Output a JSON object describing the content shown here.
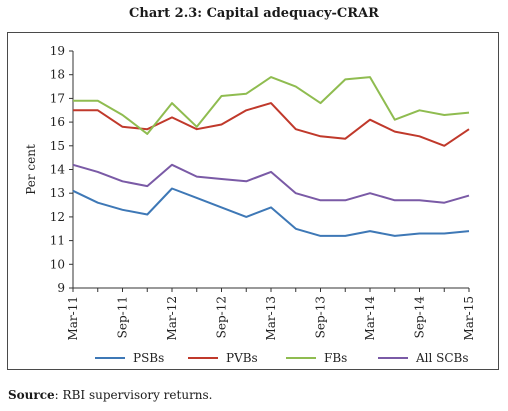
{
  "chart_data": {
    "type": "line",
    "title": "Chart 2.3: Capital adequacy-CRAR",
    "ylabel": "Per cent",
    "xlabel": "",
    "ylim": [
      9,
      19
    ],
    "yticks": [
      9,
      10,
      11,
      12,
      13,
      14,
      15,
      16,
      17,
      18,
      19
    ],
    "x": [
      "Mar-11",
      "Jun-11",
      "Sep-11",
      "Dec-11",
      "Mar-12",
      "Jun-12",
      "Sep-12",
      "Dec-12",
      "Mar-13",
      "Jun-13",
      "Sep-13",
      "Dec-13",
      "Mar-14",
      "Jun-14",
      "Sep-14",
      "Dec-14",
      "Mar-15"
    ],
    "xtick_labels": [
      "Mar-11",
      "Sep-11",
      "Mar-12",
      "Sep-12",
      "Mar-13",
      "Sep-13",
      "Mar-14",
      "Sep-14",
      "Mar-15"
    ],
    "xtick_indices": [
      0,
      2,
      4,
      6,
      8,
      10,
      12,
      14,
      16
    ],
    "grid": false,
    "legend_position": "bottom",
    "series": [
      {
        "name": "PSBs",
        "color": "#3e78b6",
        "values": [
          13.1,
          12.6,
          12.3,
          12.1,
          13.2,
          12.8,
          12.4,
          12.0,
          12.4,
          11.5,
          11.2,
          11.2,
          11.4,
          11.2,
          11.3,
          11.3,
          11.4
        ]
      },
      {
        "name": "PVBs",
        "color": "#c0392b",
        "values": [
          16.5,
          16.5,
          15.8,
          15.7,
          16.2,
          15.7,
          15.9,
          16.5,
          16.8,
          15.7,
          15.4,
          15.3,
          16.1,
          15.6,
          15.4,
          15.0,
          15.7
        ]
      },
      {
        "name": "FBs",
        "color": "#8fbc50",
        "values": [
          16.9,
          16.9,
          16.3,
          15.5,
          16.8,
          15.8,
          17.1,
          17.2,
          17.9,
          17.5,
          16.8,
          17.8,
          17.9,
          16.1,
          16.5,
          16.3,
          16.4
        ]
      },
      {
        "name": "All SCBs",
        "color": "#7a5aa6",
        "values": [
          14.2,
          13.9,
          13.5,
          13.3,
          14.2,
          13.7,
          13.6,
          13.5,
          13.9,
          13.0,
          12.7,
          12.7,
          13.0,
          12.7,
          12.7,
          12.6,
          12.9
        ]
      }
    ]
  },
  "source": {
    "label": "Source",
    "text": ": RBI supervisory returns."
  }
}
